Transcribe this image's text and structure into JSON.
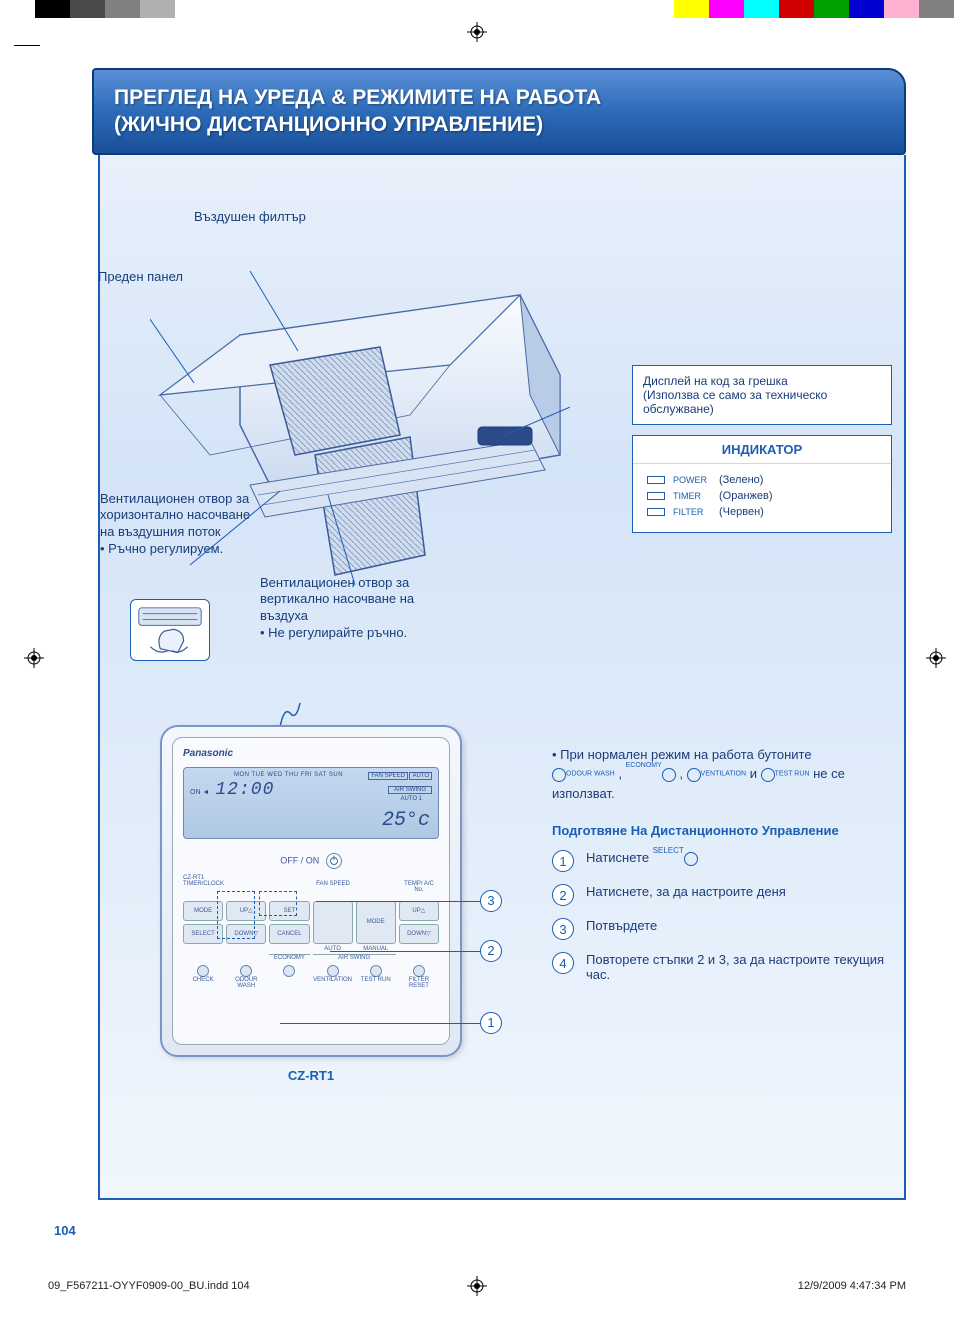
{
  "print_bars_left": [
    "#ffffff",
    "#000000",
    "#4a4a4a",
    "#808080",
    "#b0b0b0",
    "#ffffff"
  ],
  "print_bars_right": [
    "#ffff00",
    "#ff00ff",
    "#00ffff",
    "#d00000",
    "#00a000",
    "#0000d0",
    "#ffb0d0",
    "#808080"
  ],
  "header": {
    "title_line1": "ПРЕГЛЕД НА УРЕДА & РЕЖИМИТЕ НА РАБОТА",
    "title_line2": "(ЖИЧНО ДИСТАНЦИОННО УПРАВЛЕНИЕ)",
    "bg_gradient": [
      "#5a8fd6",
      "#1a4f99"
    ],
    "text_color": "#ffffff"
  },
  "callouts": {
    "air_filter": "Въздушен филтър",
    "front_panel": "Преден панел",
    "horiz_vent": "Вентилационен отвор за хоризонтално насочване на въздушния поток",
    "horiz_vent_note": "• Ръчно регулируем.",
    "vert_vent": "Вентилационен отвор за вертикално насочване на въздуха",
    "vert_vent_note": "• Не регулирайте ръчно."
  },
  "error_box": {
    "line1": "Дисплей на код за грешка",
    "line2": "(Използва се само за техническо обслужване)"
  },
  "indicator": {
    "title": "ИНДИКАТОР",
    "rows": [
      {
        "led_color": "#5fbf5f",
        "label": "POWER",
        "name": "(Зелено)"
      },
      {
        "led_color": "#f4a040",
        "label": "TIMER",
        "name": "(Оранжев)"
      },
      {
        "led_color": "#e05050",
        "label": "FILTER",
        "name": "(Червен)"
      }
    ]
  },
  "remote": {
    "brand": "Panasonic",
    "model": "CZ-RT1",
    "off_on": "OFF / ON",
    "lcd": {
      "days": "MON TUE WED THU FRI SAT SUN",
      "on": "ON ◄",
      "time": "12:00",
      "temp": "25°c",
      "fan_speed": "FAN SPEED",
      "auto": "AUTO",
      "air_swing": "AIR SWING",
      "auto1": "AUTO 1"
    },
    "labels": {
      "czrt1": "CZ-RT1",
      "timer_clock": "TIMER/CLOCK",
      "mode": "MODE",
      "up": "UP",
      "down": "DOWN",
      "select": "SELECT",
      "set": "SET",
      "cancel": "CANCEL",
      "fan_speed": "FAN SPEED",
      "auto": "AUTO",
      "manual": "MANUAL",
      "mode2": "MODE",
      "temp_ac": "TEMP/ A/C No.",
      "up2": "UP",
      "down2": "DOWN",
      "check": "CHECK",
      "odour": "ODOUR WASH",
      "economy": "ECONOMY",
      "ventilation": "VENTILATION",
      "test_run": "TEST RUN",
      "filter_reset": "FILTER RESET",
      "air_swing": "AIR SWING"
    }
  },
  "leads": [
    "1",
    "2",
    "3"
  ],
  "instructions": {
    "note_pre": "• При нормален режим на работа бутоните",
    "note_mid": ",",
    "note_and": "и",
    "note_post": "не се използват.",
    "tiny_labels": [
      "ODOUR WASH",
      "ECONOMY",
      "VENTILATION",
      "TEST RUN"
    ],
    "title": "Подготвяне На Дистанционното Управление",
    "steps": [
      {
        "n": "1",
        "text": "Натиснете",
        "btn": "SELECT"
      },
      {
        "n": "2",
        "text": "Натиснете, за да настроите деня"
      },
      {
        "n": "3",
        "text": "Потвърдете"
      },
      {
        "n": "4",
        "text": "Повторете стъпки 2 и 3, за да настроите текущия час."
      }
    ]
  },
  "page_number": "104",
  "footer": {
    "file": "09_F567211-OYYF0909-00_BU.indd   104",
    "datetime": "12/9/2009   4:47:34 PM"
  },
  "colors": {
    "blue_main": "#1a5fb4",
    "blue_dark": "#1a3d7a",
    "bg_top": "#e8f0fb",
    "bg_bottom": "#f0f6fd"
  }
}
